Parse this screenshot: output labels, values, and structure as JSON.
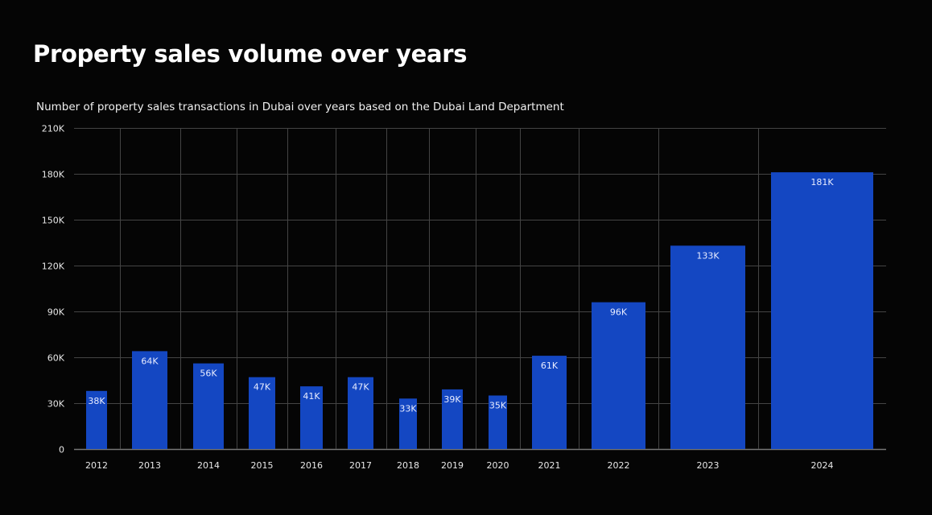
{
  "header": {
    "title": "Property sales volume over years",
    "subtitle": "Number of property sales transactions in Dubai over years based on the Dubai Land Department"
  },
  "colors": {
    "bar": "#1447c2",
    "background": "#050505",
    "grid": "#444444"
  },
  "chart_data": {
    "type": "bar",
    "title": "Property sales volume over years",
    "subtitle": "Number of property sales transactions in Dubai over years based on the Dubai Land Department",
    "xlabel": "",
    "ylabel": "",
    "categories": [
      "2012",
      "2013",
      "2014",
      "2015",
      "2016",
      "2017",
      "2018",
      "2019",
      "2020",
      "2021",
      "2022",
      "2023",
      "2024"
    ],
    "values": [
      38000,
      64000,
      56000,
      47000,
      41000,
      47000,
      33000,
      39000,
      35000,
      61000,
      96000,
      133000,
      181000
    ],
    "data_labels": [
      "38K",
      "64K",
      "56K",
      "47K",
      "41K",
      "47K",
      "33K",
      "39K",
      "35K",
      "61K",
      "96K",
      "133K",
      "181K"
    ],
    "ylim": [
      0,
      210000
    ],
    "yticks": [
      0,
      30000,
      60000,
      90000,
      120000,
      150000,
      180000,
      210000
    ],
    "ytick_labels": [
      "0",
      "30K",
      "60K",
      "90K",
      "120K",
      "150K",
      "180K",
      "210K"
    ],
    "grid": true,
    "legend": "none"
  }
}
